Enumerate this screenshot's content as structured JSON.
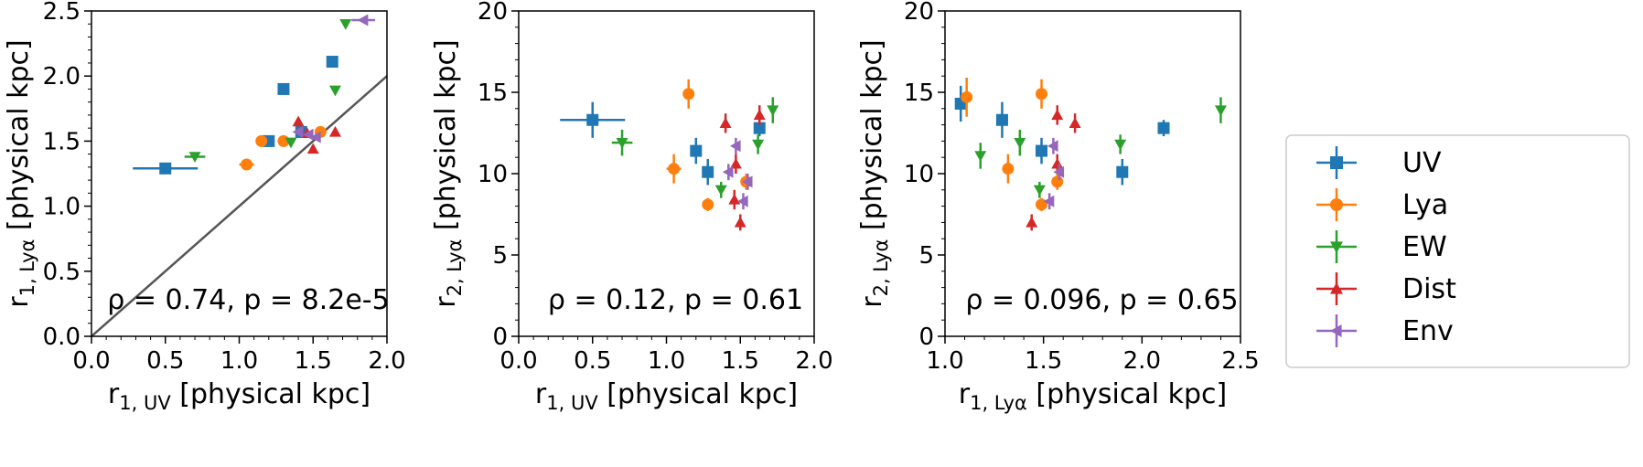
{
  "chart_data": [
    {
      "type": "scatter",
      "xlabel": "r",
      "xlabel_sub": "1, UV",
      "xlabel_rest": " [physical kpc]",
      "ylabel": "r",
      "ylabel_sub": "1, Lyα",
      "ylabel_rest": " [physical kpc]",
      "xlim": [
        0.0,
        2.0
      ],
      "ylim": [
        0.0,
        2.5
      ],
      "xticks": [
        "0.0",
        "0.5",
        "1.0",
        "1.5",
        "2.0"
      ],
      "yticks": [
        "0.0",
        "0.5",
        "1.0",
        "1.5",
        "2.0",
        "2.5"
      ],
      "identity_line": true,
      "annotation": "ρ = 0.74, p = 8.2e-5",
      "series": [
        {
          "name": "UV",
          "points": [
            {
              "x": 0.5,
              "y": 1.29,
              "xerr": 0.22,
              "yerr": 0
            },
            {
              "x": 1.3,
              "y": 1.9,
              "xerr": 0,
              "yerr": 0
            },
            {
              "x": 1.63,
              "y": 2.11,
              "xerr": 0,
              "yerr": 0
            },
            {
              "x": 1.2,
              "y": 1.5,
              "xerr": 0,
              "yerr": 0
            },
            {
              "x": 1.42,
              "y": 1.57,
              "xerr": 0,
              "yerr": 0
            }
          ]
        },
        {
          "name": "Lya",
          "points": [
            {
              "x": 1.05,
              "y": 1.32,
              "xerr": 0.05,
              "yerr": 0
            },
            {
              "x": 1.15,
              "y": 1.5,
              "xerr": 0.03,
              "yerr": 0
            },
            {
              "x": 1.3,
              "y": 1.5,
              "xerr": 0,
              "yerr": 0
            },
            {
              "x": 1.55,
              "y": 1.57,
              "xerr": 0,
              "yerr": 0
            }
          ]
        },
        {
          "name": "EW",
          "points": [
            {
              "x": 0.7,
              "y": 1.38,
              "xerr": 0.07,
              "yerr": 0
            },
            {
              "x": 1.35,
              "y": 1.49,
              "xerr": 0,
              "yerr": 0
            },
            {
              "x": 1.65,
              "y": 1.89,
              "xerr": 0,
              "yerr": 0
            },
            {
              "x": 1.72,
              "y": 2.4,
              "xerr": 0,
              "yerr": 0
            }
          ]
        },
        {
          "name": "Dist",
          "points": [
            {
              "x": 1.4,
              "y": 1.65,
              "xerr": 0,
              "yerr": 0
            },
            {
              "x": 1.46,
              "y": 1.56,
              "xerr": 0,
              "yerr": 0
            },
            {
              "x": 1.5,
              "y": 1.44,
              "xerr": 0,
              "yerr": 0
            },
            {
              "x": 1.65,
              "y": 1.57,
              "xerr": 0,
              "yerr": 0
            }
          ]
        },
        {
          "name": "Env",
          "points": [
            {
              "x": 1.4,
              "y": 1.57,
              "xerr": 0,
              "yerr": 0
            },
            {
              "x": 1.47,
              "y": 1.55,
              "xerr": 0,
              "yerr": 0
            },
            {
              "x": 1.52,
              "y": 1.53,
              "xerr": 0,
              "yerr": 0
            },
            {
              "x": 1.84,
              "y": 2.43,
              "xerr": 0.08,
              "yerr": 0
            }
          ]
        }
      ]
    },
    {
      "type": "scatter",
      "xlabel": "r",
      "xlabel_sub": "1, UV",
      "xlabel_rest": " [physical kpc]",
      "ylabel": "r",
      "ylabel_sub": "2, Lyα",
      "ylabel_rest": " [physical kpc]",
      "xlim": [
        0.0,
        2.0
      ],
      "ylim": [
        0,
        20
      ],
      "xticks": [
        "0.0",
        "0.5",
        "1.0",
        "1.5",
        "2.0"
      ],
      "yticks": [
        "0",
        "5",
        "10",
        "15",
        "20"
      ],
      "identity_line": false,
      "annotation": "ρ = 0.12, p = 0.61",
      "series": [
        {
          "name": "UV",
          "points": [
            {
              "x": 0.5,
              "y": 13.3,
              "xerr": 0.22,
              "yerr": 1.1
            },
            {
              "x": 1.2,
              "y": 11.4,
              "xerr": 0,
              "yerr": 0.8
            },
            {
              "x": 1.28,
              "y": 10.1,
              "xerr": 0,
              "yerr": 0.8
            },
            {
              "x": 1.63,
              "y": 12.8,
              "xerr": 0,
              "yerr": 0.5
            }
          ]
        },
        {
          "name": "Lya",
          "points": [
            {
              "x": 1.05,
              "y": 10.3,
              "xerr": 0.05,
              "yerr": 0.9
            },
            {
              "x": 1.15,
              "y": 14.9,
              "xerr": 0.03,
              "yerr": 0.9
            },
            {
              "x": 1.28,
              "y": 8.1,
              "xerr": 0,
              "yerr": 0.4
            },
            {
              "x": 1.54,
              "y": 9.5,
              "xerr": 0,
              "yerr": 0.5
            }
          ]
        },
        {
          "name": "EW",
          "points": [
            {
              "x": 0.7,
              "y": 11.9,
              "xerr": 0.07,
              "yerr": 0.8
            },
            {
              "x": 1.37,
              "y": 9.0,
              "xerr": 0,
              "yerr": 0.5
            },
            {
              "x": 1.62,
              "y": 11.8,
              "xerr": 0,
              "yerr": 0.6
            },
            {
              "x": 1.72,
              "y": 13.9,
              "xerr": 0,
              "yerr": 0.8
            }
          ]
        },
        {
          "name": "Dist",
          "points": [
            {
              "x": 1.4,
              "y": 13.1,
              "xerr": 0,
              "yerr": 0.6
            },
            {
              "x": 1.46,
              "y": 8.4,
              "xerr": 0,
              "yerr": 0.6
            },
            {
              "x": 1.47,
              "y": 10.6,
              "xerr": 0,
              "yerr": 0.6
            },
            {
              "x": 1.5,
              "y": 7.0,
              "xerr": 0,
              "yerr": 0.5
            },
            {
              "x": 1.63,
              "y": 13.6,
              "xerr": 0,
              "yerr": 0.6
            }
          ]
        },
        {
          "name": "Env",
          "points": [
            {
              "x": 1.42,
              "y": 10.1,
              "xerr": 0,
              "yerr": 0.5
            },
            {
              "x": 1.47,
              "y": 11.7,
              "xerr": 0,
              "yerr": 0.5
            },
            {
              "x": 1.52,
              "y": 8.3,
              "xerr": 0,
              "yerr": 0.5
            },
            {
              "x": 1.55,
              "y": 9.5,
              "xerr": 0,
              "yerr": 0.5
            }
          ]
        }
      ]
    },
    {
      "type": "scatter",
      "xlabel": "r",
      "xlabel_sub": "1, Lyα",
      "xlabel_rest": " [physical kpc]",
      "ylabel": "r",
      "ylabel_sub": "2, Lyα",
      "ylabel_rest": " [physical kpc]",
      "xlim": [
        1.0,
        2.5
      ],
      "ylim": [
        0,
        20
      ],
      "xticks": [
        "1.0",
        "1.5",
        "2.0",
        "2.5"
      ],
      "yticks": [
        "0",
        "5",
        "10",
        "15",
        "20"
      ],
      "identity_line": false,
      "annotation": "ρ = 0.096, p = 0.65",
      "series": [
        {
          "name": "UV",
          "points": [
            {
              "x": 1.08,
              "y": 14.3,
              "xerr": 0,
              "yerr": 1.1
            },
            {
              "x": 1.29,
              "y": 13.3,
              "xerr": 0,
              "yerr": 1.1
            },
            {
              "x": 1.49,
              "y": 11.4,
              "xerr": 0,
              "yerr": 0.8
            },
            {
              "x": 1.9,
              "y": 10.1,
              "xerr": 0,
              "yerr": 0.8
            },
            {
              "x": 2.11,
              "y": 12.8,
              "xerr": 0,
              "yerr": 0.5
            }
          ]
        },
        {
          "name": "Lya",
          "points": [
            {
              "x": 1.11,
              "y": 14.7,
              "xerr": 0,
              "yerr": 1.2
            },
            {
              "x": 1.32,
              "y": 10.3,
              "xerr": 0,
              "yerr": 0.9
            },
            {
              "x": 1.49,
              "y": 14.9,
              "xerr": 0,
              "yerr": 0.9
            },
            {
              "x": 1.49,
              "y": 8.1,
              "xerr": 0,
              "yerr": 0.4
            },
            {
              "x": 1.57,
              "y": 9.5,
              "xerr": 0,
              "yerr": 0.5
            }
          ]
        },
        {
          "name": "EW",
          "points": [
            {
              "x": 1.18,
              "y": 11.1,
              "xerr": 0,
              "yerr": 0.8
            },
            {
              "x": 1.38,
              "y": 11.9,
              "xerr": 0,
              "yerr": 0.8
            },
            {
              "x": 1.48,
              "y": 9.0,
              "xerr": 0,
              "yerr": 0.5
            },
            {
              "x": 1.89,
              "y": 11.8,
              "xerr": 0,
              "yerr": 0.6
            },
            {
              "x": 2.4,
              "y": 13.9,
              "xerr": 0,
              "yerr": 0.8
            }
          ]
        },
        {
          "name": "Dist",
          "points": [
            {
              "x": 1.44,
              "y": 7.0,
              "xerr": 0,
              "yerr": 0.5
            },
            {
              "x": 1.57,
              "y": 10.6,
              "xerr": 0,
              "yerr": 0.6
            },
            {
              "x": 1.57,
              "y": 13.6,
              "xerr": 0,
              "yerr": 0.6
            },
            {
              "x": 1.66,
              "y": 13.1,
              "xerr": 0,
              "yerr": 0.6
            }
          ]
        },
        {
          "name": "Env",
          "points": [
            {
              "x": 1.53,
              "y": 8.3,
              "xerr": 0,
              "yerr": 0.5
            },
            {
              "x": 1.55,
              "y": 11.7,
              "xerr": 0,
              "yerr": 0.5
            },
            {
              "x": 1.58,
              "y": 10.1,
              "xerr": 0,
              "yerr": 0.5
            }
          ]
        }
      ]
    }
  ],
  "legend": {
    "placement": "right",
    "entries": [
      {
        "name": "UV",
        "label": "UV"
      },
      {
        "name": "Lya",
        "label": "Lya"
      },
      {
        "name": "EW",
        "label": "EW"
      },
      {
        "name": "Dist",
        "label": "Dist"
      },
      {
        "name": "Env",
        "label": "Env"
      }
    ]
  },
  "colors": {
    "UV": "#1f77b4",
    "Lya": "#ff7f0e",
    "EW": "#2ca02c",
    "Dist": "#d62728",
    "Env": "#9467bd",
    "identity": "#555555"
  },
  "markers": {
    "UV": "square",
    "Lya": "circle",
    "EW": "triangle-down",
    "Dist": "triangle-up",
    "Env": "triangle-left"
  }
}
